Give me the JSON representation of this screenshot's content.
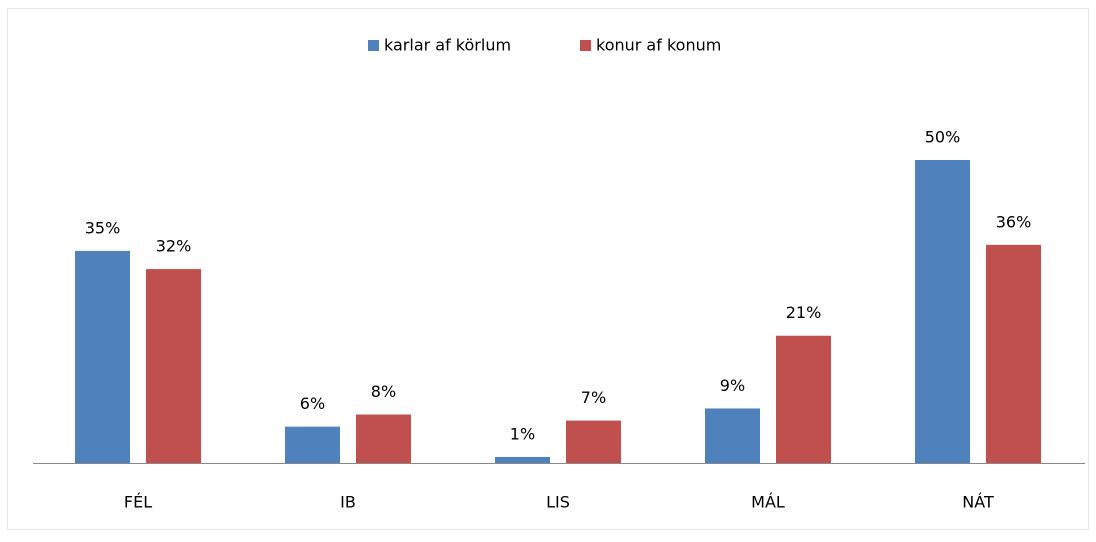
{
  "chart_data": {
    "type": "bar",
    "categories": [
      "FÉL",
      "IB",
      "LIS",
      "MÁL",
      "NÁT"
    ],
    "series": [
      {
        "name": "karlar af körlum",
        "color": "#4f81bd",
        "values": [
          35,
          6,
          1,
          9,
          50
        ],
        "value_labels": [
          "35%",
          "6%",
          "1%",
          "9%",
          "50%"
        ]
      },
      {
        "name": "konur af konum",
        "color": "#c0504d",
        "values": [
          32,
          8,
          7,
          21,
          36
        ],
        "value_labels": [
          "32%",
          "8%",
          "7%",
          "21%",
          "36%"
        ]
      }
    ],
    "legend": "top"
  }
}
